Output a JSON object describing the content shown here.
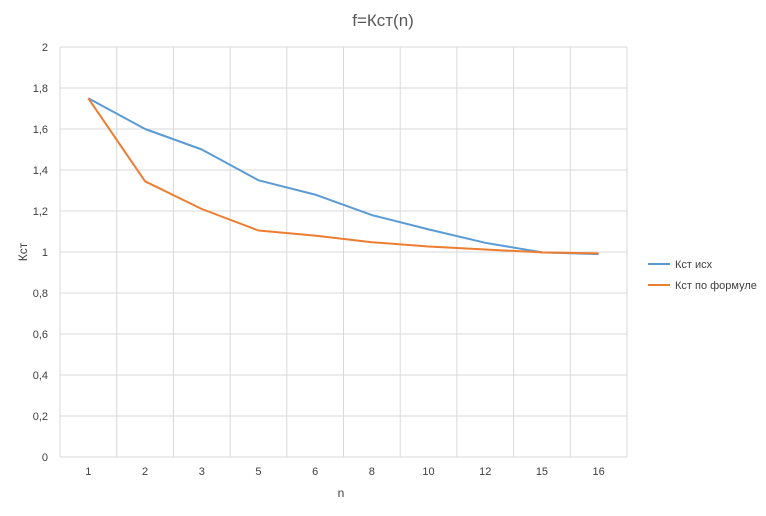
{
  "chart_data": {
    "type": "line",
    "title": "f=Кст(n)",
    "xlabel": "n",
    "ylabel": "Кст",
    "categories": [
      "1",
      "2",
      "3",
      "5",
      "6",
      "8",
      "10",
      "12",
      "15",
      "16"
    ],
    "ylim": [
      0,
      2
    ],
    "yticks": [
      "0",
      "0,2",
      "0,4",
      "0,6",
      "0,8",
      "1",
      "1,2",
      "1,4",
      "1,6",
      "1,8",
      "2"
    ],
    "grid": true,
    "legend_position": "right",
    "series": [
      {
        "name": "Кст исх",
        "color": "#5b9bd5",
        "values": [
          1.75,
          1.6,
          1.5,
          1.35,
          1.28,
          1.18,
          1.11,
          1.045,
          0.998,
          0.99
        ]
      },
      {
        "name": "Кст по формуле",
        "color": "#ed7d31",
        "values": [
          1.75,
          1.345,
          1.21,
          1.105,
          1.08,
          1.048,
          1.027,
          1.012,
          0.998,
          0.993
        ]
      }
    ]
  }
}
